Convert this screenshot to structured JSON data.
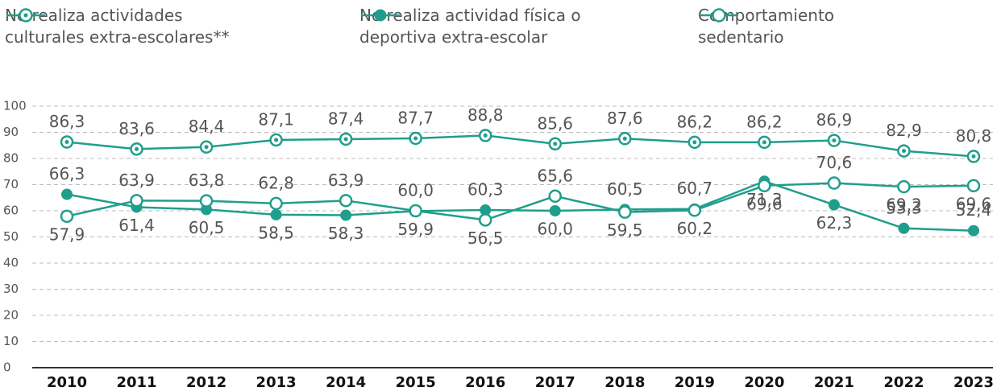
{
  "chart_data": {
    "type": "line",
    "categories": [
      "2010",
      "2011",
      "2012",
      "2013",
      "2014",
      "2015",
      "2016",
      "2017",
      "2018",
      "2019",
      "2020",
      "2021",
      "2022",
      "2023"
    ],
    "series": [
      {
        "name": "No realiza actividades culturales extra-escolares**",
        "color": "#1f9e8c",
        "marker": "dot",
        "values": [
          86.3,
          83.6,
          84.4,
          87.1,
          87.4,
          87.7,
          88.8,
          85.6,
          87.6,
          86.2,
          86.2,
          86.9,
          82.9,
          80.8
        ],
        "value_labels": [
          "86,3",
          "83,6",
          "84,4",
          "87,1",
          "87,4",
          "87,7",
          "88,8",
          "85,6",
          "87,6",
          "86,2",
          "86,2",
          "86,9",
          "82,9",
          "80,8"
        ]
      },
      {
        "name": "No realiza actividad física o deportiva extra-escolar",
        "color": "#1f9e8c",
        "marker": "filled",
        "values": [
          66.3,
          61.4,
          60.5,
          58.5,
          58.3,
          59.9,
          60.3,
          60.0,
          60.5,
          60.7,
          71.3,
          62.3,
          53.3,
          52.4
        ],
        "value_labels": [
          "66,3",
          "61,4",
          "60,5",
          "58,5",
          "58,3",
          "59,9",
          "60,3",
          "60,0",
          "60,5",
          "60,7",
          "71,3",
          "62,3",
          "53,3",
          "52,4"
        ]
      },
      {
        "name": "Comportamiento sedentario",
        "color": "#1f9e8c",
        "marker": "hollow",
        "values": [
          57.9,
          63.9,
          63.8,
          62.8,
          63.9,
          60.0,
          56.5,
          65.6,
          59.5,
          60.2,
          69.6,
          70.6,
          69.2,
          69.6
        ],
        "value_labels": [
          "57,9",
          "63,9",
          "63,8",
          "62,8",
          "63,9",
          "60,0",
          "56,5",
          "65,6",
          "59,5",
          "60,2",
          "69,6",
          "70,6",
          "69,2",
          "69,6"
        ]
      }
    ],
    "ylim": [
      0,
      100
    ],
    "yticks": [
      0,
      10,
      20,
      30,
      40,
      50,
      60,
      70,
      80,
      90,
      100
    ],
    "grid": true,
    "legend": "top"
  }
}
